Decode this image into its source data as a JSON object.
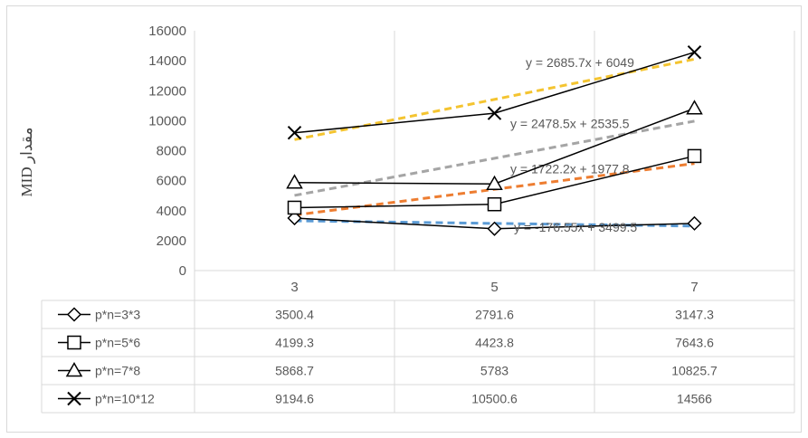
{
  "chart_data": {
    "type": "line",
    "ylabel": "MID مقدار",
    "categories": [
      "3",
      "5",
      "7"
    ],
    "ylim": [
      0,
      16000
    ],
    "yticks": [
      0,
      2000,
      4000,
      6000,
      8000,
      10000,
      12000,
      14000,
      16000
    ],
    "grid": "vertical",
    "legend": "data-table",
    "series": [
      {
        "name": "p*n=3*3",
        "marker": "diamond",
        "values": [
          3500.4,
          2791.6,
          3147.3
        ],
        "display": [
          "3500.4",
          "2791.6",
          "3147.3"
        ],
        "trendline": {
          "label": "y = -176.55x + 3499.5",
          "slope": -176.55,
          "intercept": 3499.5,
          "color": "#5b9bd5"
        }
      },
      {
        "name": "p*n=5*6",
        "marker": "square",
        "values": [
          4199.3,
          4423.8,
          7643.6
        ],
        "display": [
          "4199.3",
          "4423.8",
          "7643.6"
        ],
        "trendline": {
          "label": "y = 1722.2x + 1977.8",
          "slope": 1722.2,
          "intercept": 1977.8,
          "color": "#ed7d31"
        }
      },
      {
        "name": "p*n=7*8",
        "marker": "triangle",
        "values": [
          5868.7,
          5783,
          10825.7
        ],
        "display": [
          "5868.7",
          "5783",
          "10825.7"
        ],
        "trendline": {
          "label": "y = 2478.5x + 2535.5",
          "slope": 2478.5,
          "intercept": 2535.5,
          "color": "#a5a5a5"
        }
      },
      {
        "name": "p*n=10*12",
        "marker": "x",
        "values": [
          9194.6,
          10500.6,
          14566
        ],
        "display": [
          "9194.6",
          "10500.6",
          "14566"
        ],
        "trendline": {
          "label": "y = 2685.7x + 6049",
          "slope": 2685.7,
          "intercept": 6049,
          "color": "#f4c430"
        }
      }
    ],
    "line_color": "#000000"
  }
}
